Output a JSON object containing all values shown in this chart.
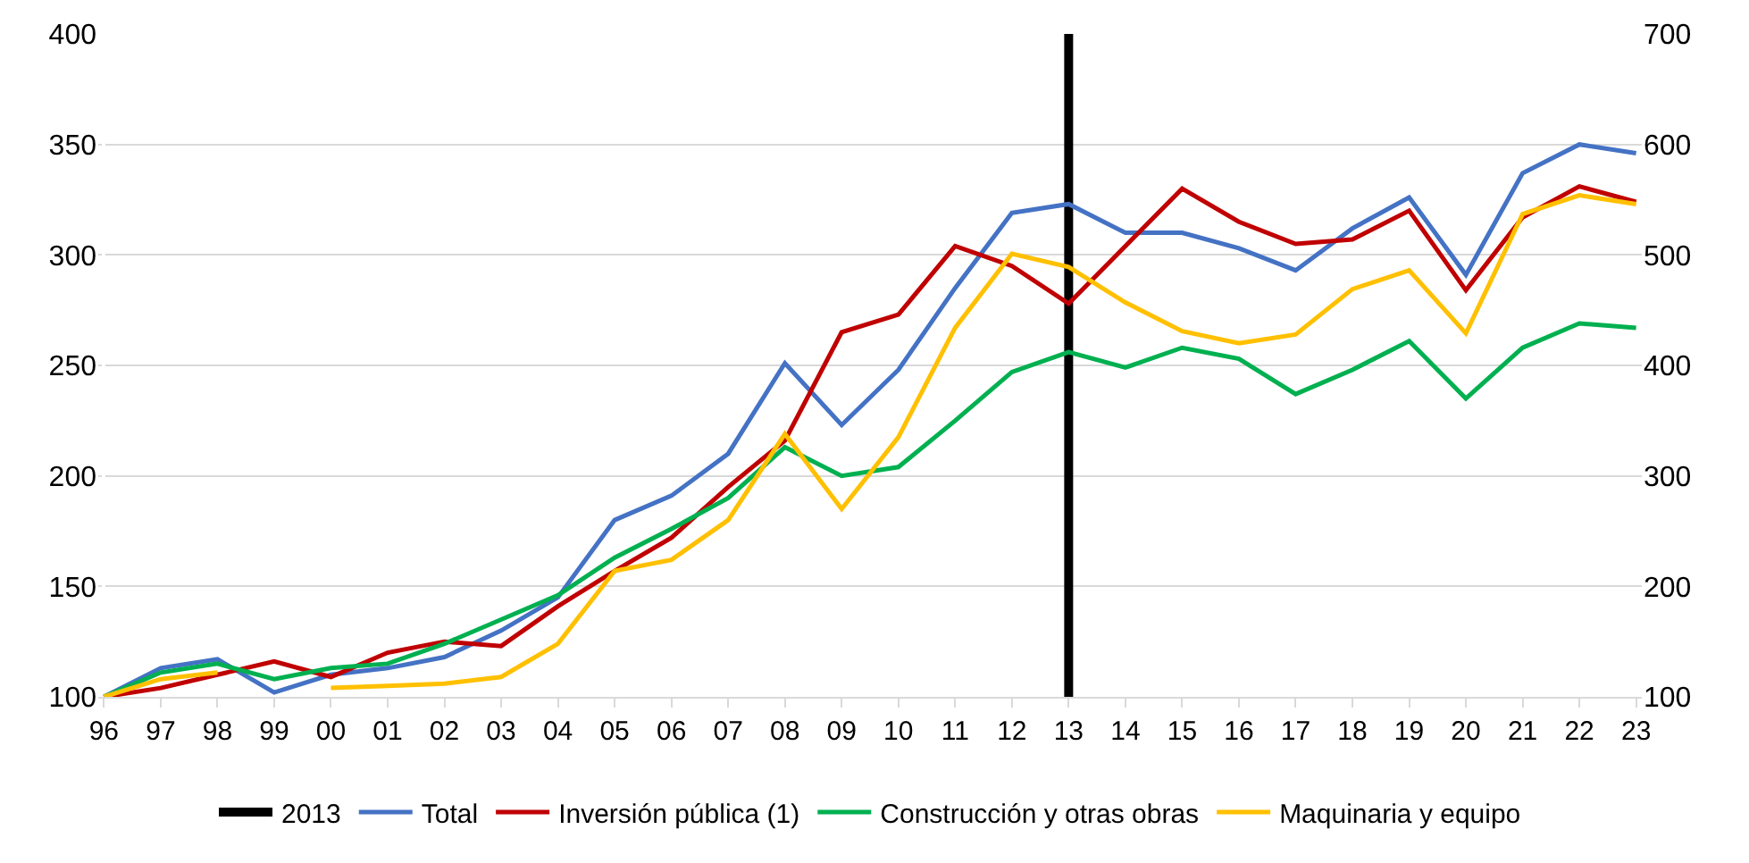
{
  "chart_data": {
    "type": "line",
    "categories": [
      "96",
      "97",
      "98",
      "99",
      "00",
      "01",
      "02",
      "03",
      "04",
      "05",
      "06",
      "07",
      "08",
      "09",
      "10",
      "11",
      "12",
      "13",
      "14",
      "15",
      "16",
      "17",
      "18",
      "19",
      "20",
      "21",
      "22",
      "23"
    ],
    "series": [
      {
        "name": "Total",
        "color": "#4472c4",
        "values": [
          100,
          113,
          117,
          102,
          110,
          113,
          118,
          130,
          145,
          180,
          191,
          210,
          251,
          223,
          248,
          285,
          319,
          323,
          310,
          310,
          303,
          293,
          312,
          326,
          291,
          337,
          350,
          346
        ]
      },
      {
        "name": "Inversión pública (1)",
        "color": "#c00000",
        "values": [
          100,
          104,
          110,
          116,
          109,
          120,
          125,
          123,
          141,
          157,
          172,
          195,
          216,
          265,
          273,
          304,
          295,
          278,
          304,
          330,
          315,
          305,
          307,
          320,
          284,
          317,
          331,
          324
        ]
      },
      {
        "name": "Construcción y otras obras",
        "color": "#00b050",
        "values": [
          100,
          111,
          115,
          108,
          113,
          115,
          124,
          135,
          146,
          163,
          176,
          190,
          213,
          200,
          204,
          225,
          247,
          256,
          249,
          258,
          253,
          237,
          248,
          261,
          235,
          258,
          269,
          267
        ]
      },
      {
        "name": "Maquinaria y equipo",
        "color": "#ffc000",
        "axis": "y2",
        "values": [
          100,
          116,
          122,
          null,
          108,
          110,
          112,
          118,
          148,
          214,
          224,
          260,
          338,
          270,
          335,
          434,
          501,
          489,
          457,
          431,
          420,
          428,
          469,
          486,
          429,
          537,
          554,
          546
        ]
      }
    ],
    "ylim": [
      100,
      400
    ],
    "yticks": [
      100,
      150,
      200,
      250,
      300,
      350,
      400
    ],
    "y2lim": [
      100,
      700
    ],
    "y2ticks": [
      100,
      200,
      300,
      400,
      500,
      600,
      700
    ],
    "ref_lines": [
      {
        "axis": "x",
        "value": "13",
        "label": "2013",
        "color": "#000000"
      }
    ],
    "grid": "y",
    "legend": "bottom",
    "line_style": "solid",
    "marker": "none"
  }
}
